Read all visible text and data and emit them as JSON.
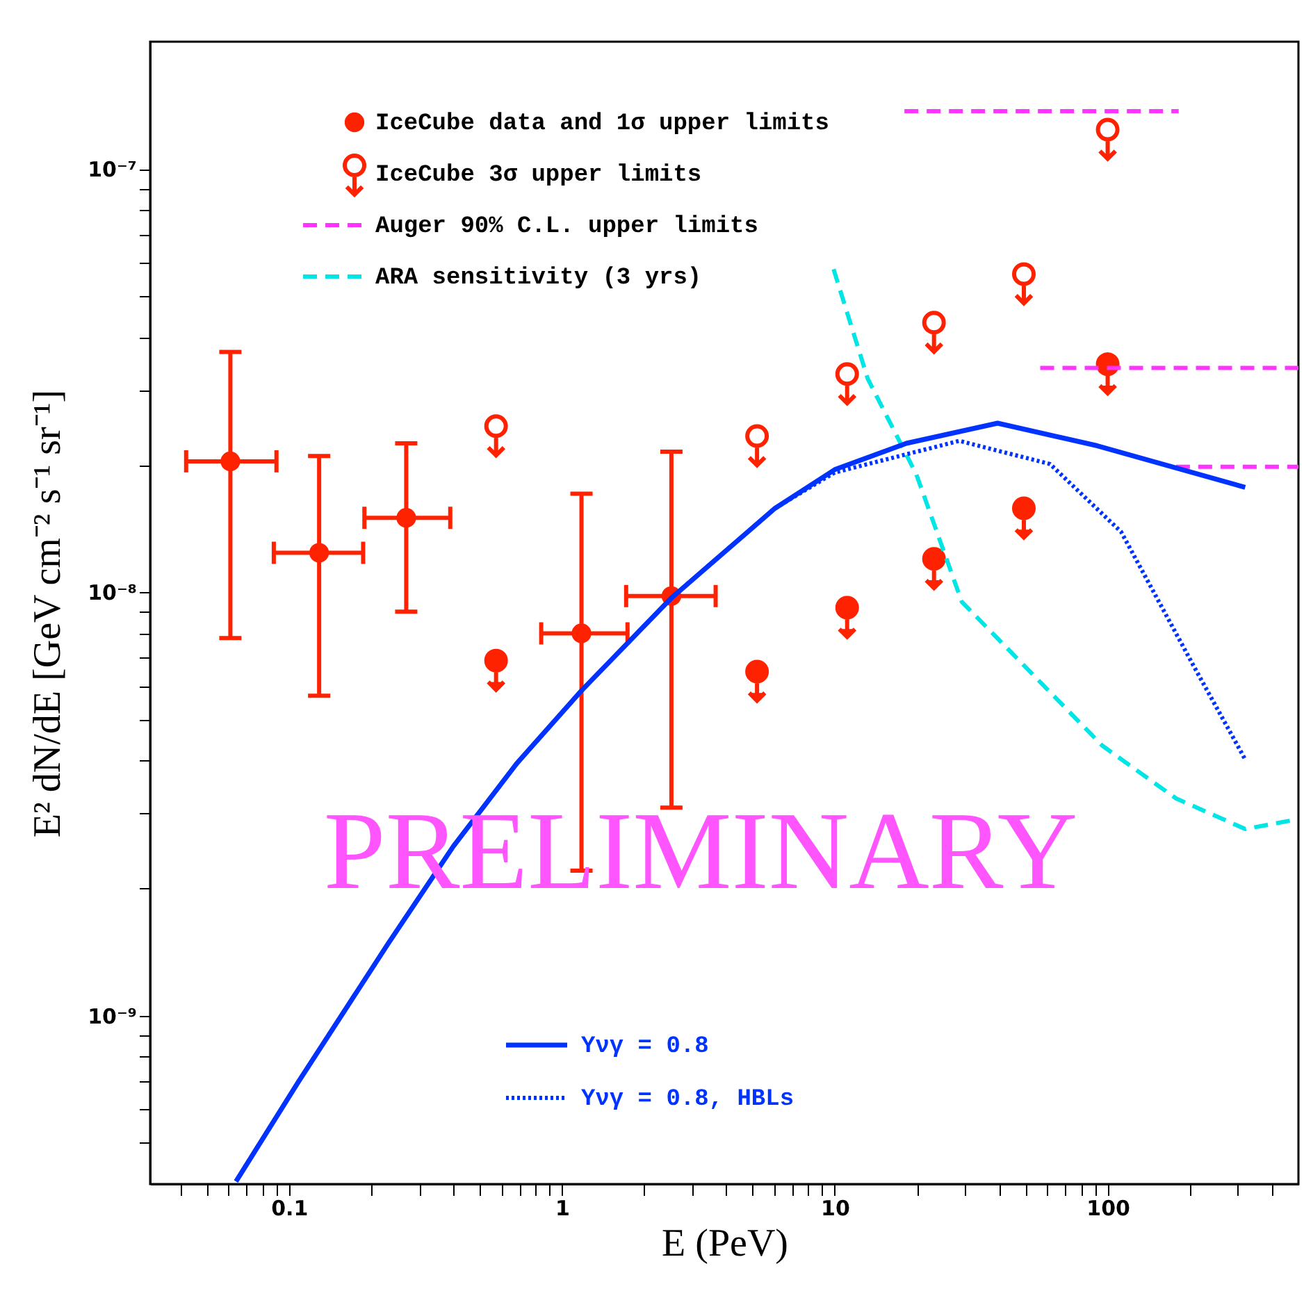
{
  "chart_data": {
    "type": "line",
    "xlabel": "E (PeV)",
    "ylabel": "E² dN/dE [GeV cm⁻² s⁻¹ sr⁻¹]",
    "log": "xy",
    "legend": "top left",
    "xlim": [
      0.031,
      500
    ],
    "ylim": [
      4e-10,
      2e-07
    ],
    "xticks": [
      {
        "value": 0.04,
        "label": null
      },
      {
        "value": 0.05,
        "label": null
      },
      {
        "value": 0.06,
        "label": null
      },
      {
        "value": 0.07,
        "label": null
      },
      {
        "value": 0.08,
        "label": null
      },
      {
        "value": 0.09,
        "label": null
      },
      0.1,
      {
        "value": 0.2,
        "label": null
      },
      {
        "value": 0.3,
        "label": null
      },
      {
        "value": 0.4,
        "label": null
      },
      {
        "value": 0.5,
        "label": null
      },
      {
        "value": 0.6,
        "label": null
      },
      {
        "value": 0.7,
        "label": null
      },
      {
        "value": 0.8,
        "label": null
      },
      {
        "value": 0.9,
        "label": null
      },
      1,
      {
        "value": 2,
        "label": null
      },
      {
        "value": 3,
        "label": null
      },
      {
        "value": 4,
        "label": null
      },
      {
        "value": 5,
        "label": null
      },
      {
        "value": 6,
        "label": null
      },
      {
        "value": 7,
        "label": null
      },
      {
        "value": 8,
        "label": null
      },
      {
        "value": 9,
        "label": null
      },
      10,
      {
        "value": 20,
        "label": null
      },
      {
        "value": 30,
        "label": null
      },
      {
        "value": 40,
        "label": null
      },
      {
        "value": 50,
        "label": null
      },
      {
        "value": 60,
        "label": null
      },
      {
        "value": 70,
        "label": null
      },
      {
        "value": 80,
        "label": null
      },
      {
        "value": 90,
        "label": null
      },
      100,
      {
        "value": 200,
        "label": null
      },
      {
        "value": 300,
        "label": null
      },
      {
        "value": 400,
        "label": null
      }
    ],
    "yticks": [
      {
        "value": 5e-10,
        "label": null
      },
      {
        "value": 6e-10,
        "label": null
      },
      {
        "value": 7e-10,
        "label": null
      },
      {
        "value": 8e-10,
        "label": null
      },
      {
        "value": 9e-10,
        "label": null
      },
      {
        "value": 1e-09,
        "label": "10⁻⁹"
      },
      {
        "value": 2e-09,
        "label": null
      },
      {
        "value": 3e-09,
        "label": null
      },
      {
        "value": 4e-09,
        "label": null
      },
      {
        "value": 5e-09,
        "label": null
      },
      {
        "value": 6e-09,
        "label": null
      },
      {
        "value": 7e-09,
        "label": null
      },
      {
        "value": 8e-09,
        "label": null
      },
      {
        "value": 9e-09,
        "label": null
      },
      {
        "value": 1e-08,
        "label": "10⁻⁸"
      },
      {
        "value": 2e-08,
        "label": null
      },
      {
        "value": 3e-08,
        "label": null
      },
      {
        "value": 4e-08,
        "label": null
      },
      {
        "value": 5e-08,
        "label": null
      },
      {
        "value": 6e-08,
        "label": null
      },
      {
        "value": 7e-08,
        "label": null
      },
      {
        "value": 8e-08,
        "label": null
      },
      {
        "value": 9e-08,
        "label": null
      },
      {
        "value": 1e-07,
        "label": "10⁻⁷"
      }
    ],
    "annotations": [
      "PRELIMINARY"
    ],
    "series": [
      {
        "type": "scatter",
        "name": "IceCube data and 1σ upper limits",
        "color": "#ff2200",
        "marker": "circle",
        "x": [
          0.061,
          0.129,
          0.269,
          0.574,
          1.18,
          2.52,
          5.19,
          11.1,
          23.1,
          49.3,
          100
        ],
        "values": [
          2.04e-08,
          1.24e-08,
          1.5e-08,
          6.9e-09,
          8e-09,
          9.8e-09,
          6.5e-09,
          9.2e-09,
          1.2e-08,
          1.58e-08,
          3.46e-08
        ],
        "errors": [
          [
            7.8e-09,
            3.7e-08
          ],
          [
            5.7e-09,
            2.1e-08
          ],
          [
            9e-09,
            2.25e-08
          ],
          null,
          [
            2.2e-09,
            1.71e-08
          ],
          [
            3.1e-09,
            2.15e-08
          ],
          null,
          null,
          null,
          null,
          null
        ],
        "xerrors": [
          [
            0.042,
            0.09
          ],
          [
            0.088,
            0.187
          ],
          [
            0.189,
            0.39
          ],
          null,
          [
            0.84,
            1.74
          ],
          [
            1.72,
            3.66
          ],
          null,
          null,
          null,
          null,
          null
        ]
      },
      {
        "type": "scatter",
        "name": "IceCube 3σ upper limits",
        "color": "#ff2200",
        "marker": "circle",
        "x": [
          0.574,
          5.19,
          11.1,
          23.1,
          49.3,
          100
        ],
        "values": [
          2.47e-08,
          2.34e-08,
          3.28e-08,
          4.34e-08,
          5.65e-08,
          1.24e-07
        ]
      },
      {
        "name": "Auger 90% C.L. upper limits",
        "color": "#ff33ff",
        "line_style": "dashed",
        "marker": "none",
        "x": [
          18,
          182
        ],
        "values": [
          1.37e-07,
          1.37e-07
        ]
      },
      {
        "color": "#ff33ff",
        "line_style": "dashed",
        "marker": "none",
        "x": [
          56.6,
          500
        ],
        "values": [
          3.39e-08,
          3.39e-08
        ]
      },
      {
        "color": "#ff33ff",
        "line_style": "dashed",
        "marker": "none",
        "x": [
          178,
          500
        ],
        "values": [
          1.98e-08,
          1.98e-08
        ]
      },
      {
        "name": "ARA sensitivity (3 yrs)",
        "color": "#00e5e5",
        "line_style": "dashed",
        "marker": "none",
        "x": [
          9.9,
          13.2,
          19.9,
          29.2,
          95.7,
          178,
          319,
          497
        ],
        "values": [
          5.8e-08,
          3.2e-08,
          1.9e-08,
          9.5e-09,
          4.34e-09,
          3.26e-09,
          2.76e-09,
          2.91e-09
        ]
      },
      {
        "name": "Yνγ = 0.8",
        "color": "#0033ff",
        "line_style": "solid",
        "marker": "none",
        "x": [
          0.064,
          0.1082,
          0.231,
          0.4,
          0.683,
          1.18,
          2.52,
          6.04,
          10,
          18.3,
          39.5,
          91.6,
          319
        ],
        "values": [
          4.06e-10,
          6.97e-10,
          1.48e-09,
          2.51e-09,
          3.94e-09,
          5.86e-09,
          9.7e-09,
          1.58e-08,
          1.95e-08,
          2.25e-08,
          2.51e-08,
          2.22e-08,
          1.77e-08
        ]
      },
      {
        "name": "Yνγ = 0.8, HBLs",
        "color": "#0033ff",
        "line_style": "dotted",
        "marker": "none",
        "x": [
          0.064,
          0.1082,
          0.231,
          0.4,
          0.683,
          1.18,
          2.52,
          6.04,
          10,
          28.6,
          61.5,
          112,
          205,
          319
        ],
        "values": [
          4.06e-10,
          6.97e-10,
          1.48e-09,
          2.51e-09,
          3.94e-09,
          5.86e-09,
          9.7e-09,
          1.58e-08,
          1.92e-08,
          2.28e-08,
          2.01e-08,
          1.39e-08,
          6.76e-09,
          4.03e-09
        ]
      }
    ]
  }
}
